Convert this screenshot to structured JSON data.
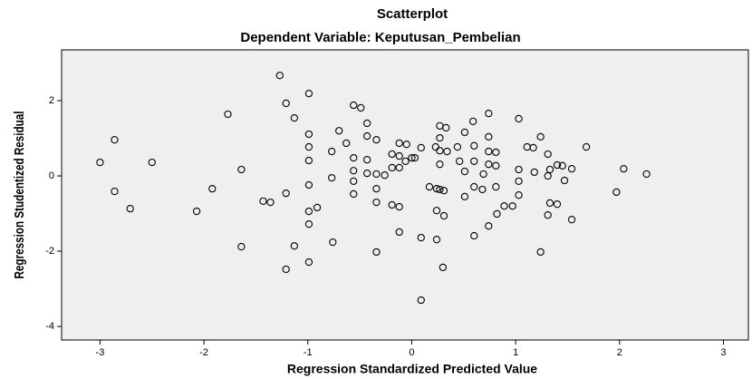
{
  "chart_data": {
    "type": "scatter",
    "title": "Scatterplot",
    "subtitle": "Dependent Variable: Keputusan_Pembelian",
    "x_label": "Regression Standardized Predicted Value",
    "y_label": "Regression Studentized Residual",
    "xlim": [
      -3.37,
      3.24
    ],
    "ylim": [
      -4.36,
      3.35
    ],
    "xticks": [
      -3,
      -2,
      -1,
      0,
      1,
      2,
      3
    ],
    "yticks": [
      -4,
      -2,
      0,
      2
    ],
    "color": "#000000",
    "x": [
      -3.0,
      -2.86,
      -2.86,
      -2.71,
      -2.5,
      -2.07,
      -1.92,
      -1.77,
      -1.64,
      -1.64,
      -1.43,
      -1.36,
      -1.27,
      -1.21,
      -1.21,
      -1.21,
      -1.13,
      -1.13,
      -0.99,
      -0.99,
      -0.99,
      -0.99,
      -0.99,
      -0.99,
      -0.99,
      -0.99,
      -0.91,
      -0.77,
      -0.77,
      -0.76,
      -0.7,
      -0.63,
      -0.56,
      -0.49,
      -0.56,
      -0.56,
      -0.56,
      -0.56,
      -0.43,
      -0.43,
      -0.43,
      -0.43,
      -0.34,
      -0.34,
      -0.34,
      -0.34,
      -0.34,
      -0.26,
      -0.19,
      -0.19,
      -0.19,
      -0.12,
      -0.12,
      -0.12,
      -0.12,
      -0.12,
      -0.06,
      -0.05,
      0.0,
      0.03,
      0.09,
      0.09,
      0.09,
      0.17,
      0.23,
      0.24,
      0.24,
      0.24,
      0.27,
      0.27,
      0.27,
      0.27,
      0.27,
      0.3,
      0.31,
      0.31,
      0.33,
      0.34,
      0.44,
      0.46,
      0.51,
      0.51,
      0.51,
      0.59,
      0.6,
      0.6,
      0.6,
      0.6,
      0.68,
      0.69,
      0.74,
      0.74,
      0.74,
      0.74,
      0.74,
      0.81,
      0.81,
      0.81,
      0.82,
      0.89,
      0.97,
      1.03,
      1.03,
      1.03,
      1.03,
      1.11,
      1.17,
      1.18,
      1.24,
      1.24,
      1.31,
      1.33,
      1.31,
      1.33,
      1.31,
      1.4,
      1.4,
      1.45,
      1.47,
      1.54,
      1.54,
      1.68,
      1.97,
      2.04,
      2.26
    ],
    "y": [
      0.36,
      0.96,
      -0.41,
      -0.87,
      0.36,
      -0.94,
      -0.34,
      1.64,
      0.17,
      -1.88,
      -0.67,
      -0.7,
      2.67,
      1.93,
      -0.46,
      -2.48,
      1.54,
      -1.86,
      2.19,
      1.11,
      0.77,
      0.41,
      -0.24,
      -0.94,
      -1.28,
      -2.29,
      -0.84,
      0.65,
      -0.05,
      -1.76,
      1.2,
      0.87,
      1.88,
      1.81,
      0.48,
      0.14,
      -0.48,
      -0.14,
      1.4,
      1.06,
      0.43,
      0.07,
      0.96,
      0.05,
      -0.34,
      -0.7,
      -2.02,
      0.02,
      0.58,
      0.22,
      -0.77,
      0.87,
      0.53,
      0.22,
      -0.82,
      -1.49,
      0.39,
      0.84,
      0.48,
      0.48,
      0.75,
      -1.64,
      -3.3,
      -0.29,
      0.77,
      -0.34,
      -0.92,
      -1.69,
      1.33,
      1.01,
      0.67,
      0.31,
      -0.36,
      -2.43,
      -1.06,
      -0.39,
      1.28,
      0.65,
      0.77,
      0.39,
      1.16,
      0.12,
      -0.55,
      1.45,
      0.8,
      0.39,
      -0.29,
      -1.59,
      -0.36,
      0.05,
      1.66,
      1.04,
      0.65,
      0.31,
      -1.33,
      0.63,
      0.27,
      -0.29,
      -1.01,
      -0.8,
      -0.8,
      1.52,
      0.17,
      -0.14,
      -0.51,
      0.77,
      0.75,
      0.1,
      1.04,
      -2.02,
      0.58,
      0.17,
      0.0,
      -0.72,
      -1.04,
      -0.75,
      0.29,
      0.27,
      -0.12,
      0.19,
      -1.16,
      0.77,
      -0.43,
      0.19,
      0.05
    ]
  }
}
